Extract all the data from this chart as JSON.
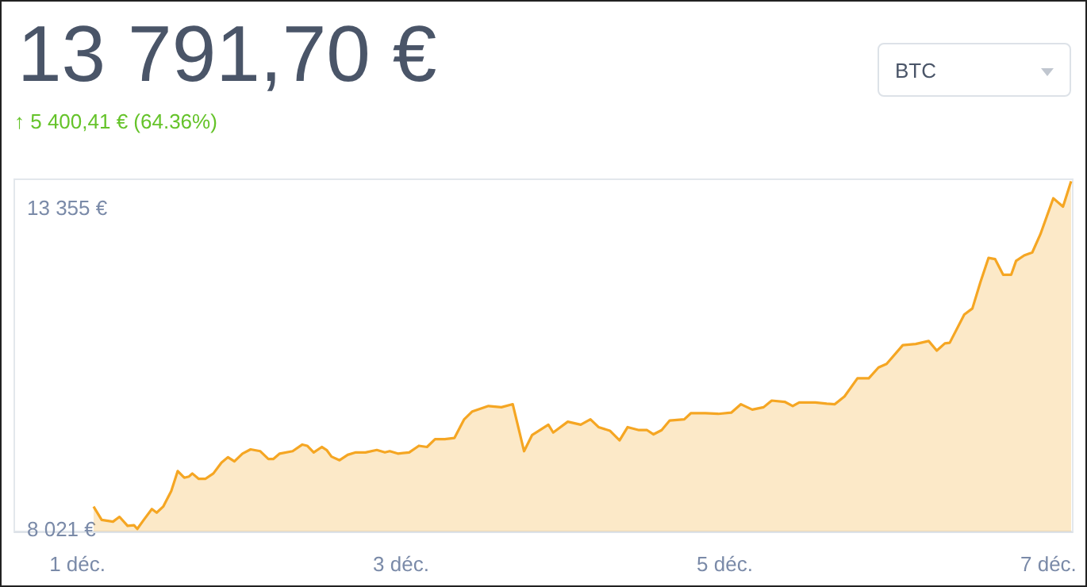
{
  "chart_data": {
    "type": "area",
    "title": "13 791,70 €",
    "subtitle": "↑ 5 400,41 € (64.36%)",
    "annotations": [
      "BTC"
    ],
    "x": [
      1.1,
      1.15,
      1.22,
      1.26,
      1.31,
      1.35,
      1.37,
      1.41,
      1.46,
      1.49,
      1.53,
      1.58,
      1.62,
      1.66,
      1.69,
      1.71,
      1.75,
      1.79,
      1.84,
      1.89,
      1.93,
      1.97,
      2.02,
      2.07,
      2.13,
      2.18,
      2.21,
      2.25,
      2.33,
      2.39,
      2.42,
      2.46,
      2.51,
      2.54,
      2.57,
      2.62,
      2.67,
      2.72,
      2.78,
      2.85,
      2.9,
      2.93,
      2.98,
      3.05,
      3.11,
      3.16,
      3.21,
      3.27,
      3.33,
      3.39,
      3.44,
      3.54,
      3.62,
      3.69,
      3.76,
      3.81,
      3.91,
      3.94,
      4.03,
      4.11,
      4.17,
      4.22,
      4.29,
      4.35,
      4.4,
      4.47,
      4.52,
      4.56,
      4.61,
      4.66,
      4.75,
      4.79,
      4.88,
      4.96,
      5.04,
      5.1,
      5.17,
      5.24,
      5.29,
      5.37,
      5.42,
      5.46,
      5.56,
      5.63,
      5.68,
      5.74,
      5.82,
      5.89,
      5.95,
      6.0,
      6.1,
      6.18,
      6.26,
      6.31,
      6.36,
      6.39,
      6.48,
      6.53,
      6.58,
      6.63,
      6.67,
      6.72,
      6.77,
      6.8,
      6.85,
      6.9,
      6.95,
      7.03,
      7.09,
      7.14
    ],
    "series": [
      {
        "color": "#f5a623",
        "values": [
          8390,
          8170,
          8140,
          8220,
          8070,
          8080,
          8020,
          8170,
          8350,
          8290,
          8390,
          8650,
          8980,
          8870,
          8890,
          8940,
          8850,
          8850,
          8940,
          9120,
          9210,
          9140,
          9270,
          9340,
          9310,
          9180,
          9180,
          9270,
          9310,
          9420,
          9400,
          9290,
          9380,
          9330,
          9220,
          9160,
          9250,
          9290,
          9290,
          9330,
          9290,
          9310,
          9270,
          9290,
          9400,
          9380,
          9510,
          9510,
          9530,
          9840,
          9970,
          10060,
          10040,
          10090,
          9310,
          9580,
          9750,
          9620,
          9800,
          9750,
          9840,
          9710,
          9650,
          9490,
          9710,
          9660,
          9660,
          9590,
          9660,
          9820,
          9840,
          9940,
          9940,
          9930,
          9950,
          10090,
          10000,
          10040,
          10150,
          10130,
          10060,
          10120,
          10120,
          10100,
          10090,
          10220,
          10520,
          10520,
          10700,
          10760,
          11070,
          11090,
          11140,
          10980,
          11100,
          11110,
          11580,
          11680,
          12120,
          12520,
          12500,
          12240,
          12240,
          12470,
          12560,
          12610,
          12910,
          13510,
          13370,
          13791
        ]
      }
    ],
    "xlim": [
      0.61,
      7.15
    ],
    "xticks": [
      {
        "value": 1,
        "label": "1 déc."
      },
      {
        "value": 3,
        "label": "3 déc."
      },
      {
        "value": 5,
        "label": "5 déc."
      },
      {
        "value": 7,
        "label": "7 déc."
      }
    ],
    "ylim": [
      7977,
      13825
    ],
    "yticks": [
      {
        "value": 13355,
        "label": "13 355 €"
      },
      {
        "value": 8021,
        "label": "8 021 €"
      }
    ],
    "grid": false,
    "marker": "none",
    "line_style": "solid"
  }
}
